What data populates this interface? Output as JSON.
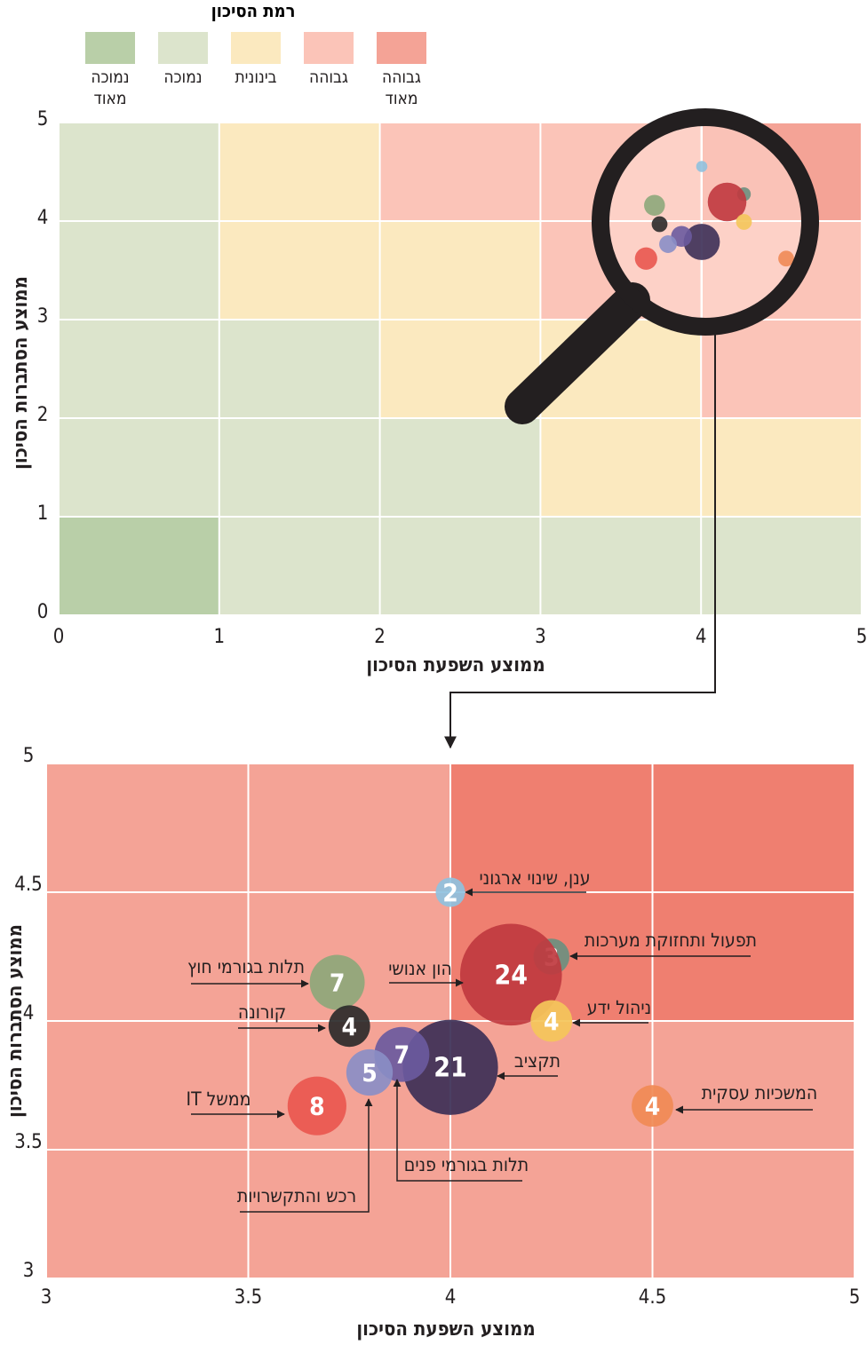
{
  "chart_data": [
    {
      "type": "heatmap",
      "legend_title": "רמת הסיכון",
      "levels": [
        "גבוהה מאוד",
        "גבוהה",
        "בינונית",
        "נמוכה",
        "נמוכה מאוד"
      ],
      "level_colors": [
        "#f4a396",
        "#fbc4b8",
        "#fbe9bf",
        "#dce4cc",
        "#b9cfa8"
      ],
      "cells": [
        [
          4,
          3,
          3,
          3,
          3
        ],
        [
          3,
          3,
          3,
          2,
          2
        ],
        [
          3,
          3,
          2,
          2,
          1
        ],
        [
          3,
          2,
          2,
          1,
          1
        ],
        [
          3,
          2,
          1,
          1,
          0
        ]
      ],
      "xlabel": "ממוצע השפעת הסיכון",
      "ylabel": "ממוצע הסתברות הסיכון",
      "xlim": [
        0,
        5
      ],
      "xticks": [
        0,
        1,
        2,
        3,
        4,
        5
      ],
      "ylim": [
        0,
        5
      ],
      "yticks": [
        0,
        1,
        2,
        3,
        4,
        5
      ],
      "grid": true
    },
    {
      "type": "bubble",
      "labels": [
        "ענן, שינוי ארגוני",
        "תפעול ותחזוקת מערכות",
        "הון אנושי",
        "ניהול ידע",
        "תלות בגורמי חוץ",
        "קורונה",
        "תקציב",
        "תלות בגורמי פנים",
        "רכש והתקשרויות",
        "ממשל IT",
        "המשכיות עסקית"
      ],
      "x": [
        4.0,
        4.25,
        4.15,
        4.25,
        3.72,
        3.75,
        4.0,
        3.88,
        3.8,
        3.67,
        4.5
      ],
      "y": [
        4.5,
        4.25,
        4.18,
        4.0,
        4.15,
        3.98,
        3.82,
        3.87,
        3.8,
        3.67,
        3.67
      ],
      "sizes": [
        2,
        3,
        24,
        4,
        7,
        4,
        21,
        7,
        5,
        8,
        4
      ],
      "colors": [
        "#8fc1de",
        "#6d8f7f",
        "#c0393f",
        "#f4c55a",
        "#8da77a",
        "#2b2a2a",
        "#3c2f56",
        "#6a5a9e",
        "#8a8ec6",
        "#e9574f",
        "#f08a55"
      ],
      "cell_colors": [
        "#ef7f70",
        "#f4a396",
        "#fbe9bf",
        "#dce4cc",
        "#b9cfa8"
      ],
      "xlabel": "ממוצע השפעת הסיכון",
      "ylabel": "ממוצע הסתברות הסיכון",
      "xlim": [
        3,
        5
      ],
      "xticks": [
        3,
        3.5,
        4,
        4.5,
        5
      ],
      "ylim": [
        3,
        5
      ],
      "yticks": [
        3,
        3.5,
        4,
        4.5,
        5
      ],
      "grid": true
    }
  ]
}
